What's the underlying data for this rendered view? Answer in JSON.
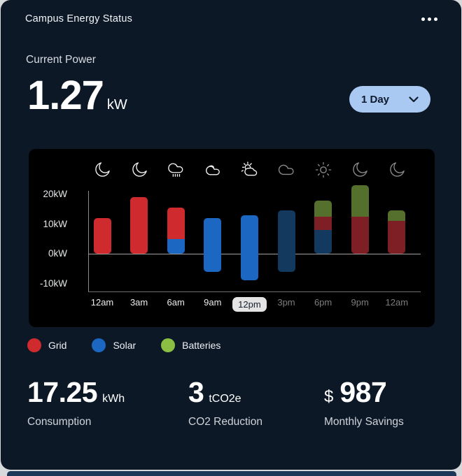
{
  "header": {
    "title": "Campus Energy Status",
    "menu_icon": "ellipsis-icon"
  },
  "current_power": {
    "label": "Current Power",
    "value": "1.27",
    "unit": "kW"
  },
  "time_range": {
    "selected": "1 Day",
    "chevron_icon": "chevron-down-icon"
  },
  "colors": {
    "card_bg": "#0d1827",
    "panel_bg": "#000000",
    "accent_pill": "#a9c9f3",
    "grid": "#cf2b2e",
    "solar": "#1c67c2",
    "batteries": "#8abf44",
    "grid_dim": "#7d1f25",
    "solar_dim": "#13395f",
    "batteries_dim": "#556f2d"
  },
  "chart_data": {
    "type": "bar",
    "stacked": true,
    "unit": "kW",
    "ylim": [
      -13,
      24
    ],
    "grid": false,
    "y_ticks": [
      {
        "label": "20kW",
        "value": 20
      },
      {
        "label": "10kW",
        "value": 10
      },
      {
        "label": "0kW",
        "value": 0
      },
      {
        "label": "-10kW",
        "value": -10
      }
    ],
    "categories": [
      "12am",
      "3am",
      "6am",
      "9am",
      "12pm",
      "3pm",
      "6pm",
      "9pm",
      "12am"
    ],
    "selected_category_index": 4,
    "weather_icons": [
      "moon",
      "moon",
      "rain",
      "clouds",
      "sun-cloud",
      "cloud",
      "sun",
      "moon",
      "moon"
    ],
    "bars": [
      {
        "time": "12am",
        "icon": "moon",
        "forecast": false,
        "segments": [
          {
            "key": "grid",
            "from": 0,
            "to": 12
          }
        ]
      },
      {
        "time": "3am",
        "icon": "moon",
        "forecast": false,
        "segments": [
          {
            "key": "grid",
            "from": 0,
            "to": 19
          }
        ]
      },
      {
        "time": "6am",
        "icon": "rain",
        "forecast": false,
        "segments": [
          {
            "key": "solar",
            "from": 0,
            "to": 5
          },
          {
            "key": "grid",
            "from": 5,
            "to": 15.5
          }
        ]
      },
      {
        "time": "9am",
        "icon": "clouds",
        "forecast": false,
        "segments": [
          {
            "key": "solar",
            "from": -6,
            "to": 12
          }
        ]
      },
      {
        "time": "12pm",
        "icon": "sun-cloud",
        "forecast": false,
        "selected": true,
        "segments": [
          {
            "key": "solar",
            "from": -9,
            "to": 13
          }
        ]
      },
      {
        "time": "3pm",
        "icon": "cloud",
        "forecast": true,
        "segments": [
          {
            "key": "solar",
            "from": -6,
            "to": 14.5
          }
        ]
      },
      {
        "time": "6pm",
        "icon": "sun",
        "forecast": true,
        "segments": [
          {
            "key": "solar",
            "from": 0,
            "to": 8
          },
          {
            "key": "grid",
            "from": 8,
            "to": 12.5
          },
          {
            "key": "batteries",
            "from": 12.5,
            "to": 18
          }
        ]
      },
      {
        "time": "9pm",
        "icon": "moon",
        "forecast": true,
        "segments": [
          {
            "key": "grid",
            "from": 0,
            "to": 12.5
          },
          {
            "key": "batteries",
            "from": 12.5,
            "to": 23
          }
        ]
      },
      {
        "time": "12am",
        "icon": "moon",
        "forecast": true,
        "segments": [
          {
            "key": "grid",
            "from": 0,
            "to": 11
          },
          {
            "key": "batteries",
            "from": 11,
            "to": 14.5
          }
        ]
      }
    ]
  },
  "legend": [
    {
      "key": "grid",
      "label": "Grid"
    },
    {
      "key": "solar",
      "label": "Solar"
    },
    {
      "key": "batteries",
      "label": "Batteries"
    }
  ],
  "stats": [
    {
      "value": "17.25",
      "unit": "kWh",
      "label": "Consumption"
    },
    {
      "value": "3",
      "unit": "tCO2e",
      "label": "CO2 Reduction"
    },
    {
      "prefix": "$",
      "value": "987",
      "label": "Monthly Savings"
    }
  ]
}
